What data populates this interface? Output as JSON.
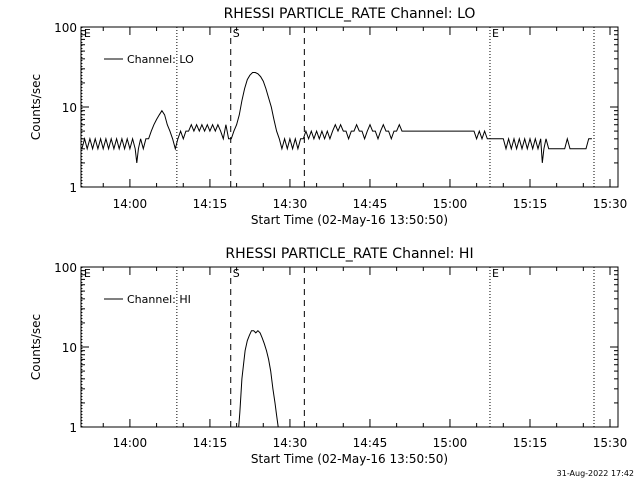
{
  "footer_timestamp": "31-Aug-2022 17:42",
  "chart_data": [
    {
      "type": "line",
      "title": "RHESSI PARTICLE_RATE Channel: LO",
      "xlabel": "Start Time (02-May-16 13:50:50)",
      "ylabel": "Counts/sec",
      "x_tick_labels": [
        "14:00",
        "14:15",
        "14:30",
        "14:45",
        "15:00",
        "15:15",
        "15:30"
      ],
      "x_tick_minutes": [
        600,
        615,
        630,
        645,
        660,
        675,
        690
      ],
      "xlim_minutes": [
        590.83,
        691.5
      ],
      "y_scale": "log",
      "ylim": [
        1,
        100
      ],
      "y_tick_labels": [
        "1",
        "10",
        "100"
      ],
      "y_tick_values": [
        1,
        10,
        100
      ],
      "legend": {
        "position": "top-left",
        "label": "Channel: LO"
      },
      "markers": [
        {
          "label": "E",
          "minute": 591.0,
          "style": "dotted"
        },
        {
          "label": "",
          "minute": 608.8,
          "style": "dotted"
        },
        {
          "label": "S",
          "minute": 618.9,
          "style": "dashed"
        },
        {
          "label": "",
          "minute": 632.7,
          "style": "dashed"
        },
        {
          "label": "E",
          "minute": 667.5,
          "style": "dotted"
        },
        {
          "label": "",
          "minute": 687.0,
          "style": "dotted"
        }
      ],
      "series": [
        {
          "name": "Channel: LO",
          "points": [
            [
              591.0,
              3
            ],
            [
              591.5,
              4
            ],
            [
              592.0,
              3
            ],
            [
              592.5,
              4
            ],
            [
              593.0,
              3
            ],
            [
              593.5,
              4
            ],
            [
              594.0,
              3
            ],
            [
              594.5,
              4
            ],
            [
              595.0,
              3
            ],
            [
              595.5,
              4
            ],
            [
              596.0,
              3
            ],
            [
              596.5,
              4
            ],
            [
              597.0,
              3
            ],
            [
              597.5,
              4
            ],
            [
              598.0,
              3
            ],
            [
              598.5,
              4
            ],
            [
              599.0,
              3
            ],
            [
              599.5,
              4
            ],
            [
              600.0,
              3
            ],
            [
              600.5,
              4
            ],
            [
              601.0,
              3
            ],
            [
              601.3,
              2
            ],
            [
              601.6,
              3
            ],
            [
              602.0,
              4
            ],
            [
              602.5,
              3
            ],
            [
              603.0,
              4
            ],
            [
              603.5,
              4
            ],
            [
              604.0,
              5
            ],
            [
              604.5,
              6
            ],
            [
              605.0,
              7
            ],
            [
              605.5,
              8
            ],
            [
              606.0,
              9
            ],
            [
              606.5,
              8
            ],
            [
              607.0,
              6
            ],
            [
              607.5,
              5
            ],
            [
              608.0,
              4
            ],
            [
              608.5,
              3
            ],
            [
              609.0,
              4
            ],
            [
              609.5,
              5
            ],
            [
              610.0,
              4
            ],
            [
              610.5,
              5
            ],
            [
              611.0,
              5
            ],
            [
              611.5,
              6
            ],
            [
              612.0,
              5
            ],
            [
              612.5,
              6
            ],
            [
              613.0,
              5
            ],
            [
              613.5,
              6
            ],
            [
              614.0,
              5
            ],
            [
              614.5,
              6
            ],
            [
              615.0,
              5
            ],
            [
              615.5,
              6
            ],
            [
              616.0,
              5
            ],
            [
              616.5,
              6
            ],
            [
              617.0,
              5
            ],
            [
              617.5,
              4
            ],
            [
              618.0,
              6
            ],
            [
              618.5,
              4
            ],
            [
              619.0,
              4
            ],
            [
              619.5,
              5
            ],
            [
              620.0,
              6
            ],
            [
              620.5,
              8
            ],
            [
              621.0,
              12
            ],
            [
              621.5,
              17
            ],
            [
              622.0,
              22
            ],
            [
              622.5,
              25
            ],
            [
              623.0,
              27
            ],
            [
              623.5,
              27
            ],
            [
              624.0,
              26
            ],
            [
              624.5,
              24
            ],
            [
              625.0,
              21
            ],
            [
              625.5,
              17
            ],
            [
              626.0,
              13
            ],
            [
              626.5,
              10
            ],
            [
              627.0,
              7
            ],
            [
              627.5,
              5
            ],
            [
              628.0,
              4
            ],
            [
              628.5,
              3
            ],
            [
              629.0,
              4
            ],
            [
              629.5,
              3
            ],
            [
              630.0,
              4
            ],
            [
              630.5,
              3
            ],
            [
              631.0,
              4
            ],
            [
              631.5,
              3
            ],
            [
              632.0,
              4
            ],
            [
              632.5,
              4
            ],
            [
              633.0,
              5
            ],
            [
              633.5,
              4
            ],
            [
              634.0,
              5
            ],
            [
              634.5,
              4
            ],
            [
              635.0,
              5
            ],
            [
              635.5,
              4
            ],
            [
              636.0,
              5
            ],
            [
              636.5,
              4
            ],
            [
              637.0,
              5
            ],
            [
              637.5,
              4
            ],
            [
              638.0,
              5
            ],
            [
              638.5,
              6
            ],
            [
              639.0,
              5
            ],
            [
              639.5,
              6
            ],
            [
              640.0,
              5
            ],
            [
              640.5,
              5
            ],
            [
              641.0,
              4
            ],
            [
              641.5,
              5
            ],
            [
              642.0,
              5
            ],
            [
              642.5,
              6
            ],
            [
              643.0,
              5
            ],
            [
              643.5,
              5
            ],
            [
              644.0,
              4
            ],
            [
              644.5,
              5
            ],
            [
              645.0,
              6
            ],
            [
              645.5,
              5
            ],
            [
              646.0,
              5
            ],
            [
              646.5,
              4
            ],
            [
              647.0,
              5
            ],
            [
              647.5,
              6
            ],
            [
              648.0,
              5
            ],
            [
              648.5,
              5
            ],
            [
              649.0,
              4
            ],
            [
              649.5,
              5
            ],
            [
              650.0,
              5
            ],
            [
              650.5,
              6
            ],
            [
              651.0,
              5
            ],
            [
              651.5,
              5
            ],
            [
              652.0,
              5
            ],
            [
              652.5,
              5
            ],
            [
              653.0,
              5
            ],
            [
              653.5,
              5
            ],
            [
              654.0,
              5
            ],
            [
              654.5,
              5
            ],
            [
              655.0,
              5
            ],
            [
              655.5,
              5
            ],
            [
              656.0,
              5
            ],
            [
              656.5,
              5
            ],
            [
              657.0,
              5
            ],
            [
              657.5,
              5
            ],
            [
              658.0,
              5
            ],
            [
              658.5,
              5
            ],
            [
              659.0,
              5
            ],
            [
              659.5,
              5
            ],
            [
              660.0,
              5
            ],
            [
              660.5,
              5
            ],
            [
              661.0,
              5
            ],
            [
              661.5,
              5
            ],
            [
              662.0,
              5
            ],
            [
              662.5,
              5
            ],
            [
              663.0,
              5
            ],
            [
              663.5,
              5
            ],
            [
              664.0,
              5
            ],
            [
              664.5,
              5
            ],
            [
              665.0,
              4
            ],
            [
              665.5,
              5
            ],
            [
              666.0,
              4
            ],
            [
              666.5,
              5
            ],
            [
              667.0,
              4
            ],
            [
              667.5,
              4
            ],
            [
              668.0,
              4
            ],
            [
              668.5,
              4
            ],
            [
              669.0,
              4
            ],
            [
              669.5,
              4
            ],
            [
              670.0,
              4
            ],
            [
              670.5,
              3
            ],
            [
              671.0,
              4
            ],
            [
              671.5,
              3
            ],
            [
              672.0,
              4
            ],
            [
              672.5,
              3
            ],
            [
              673.0,
              4
            ],
            [
              673.5,
              3
            ],
            [
              674.0,
              4
            ],
            [
              674.5,
              3
            ],
            [
              675.0,
              4
            ],
            [
              675.5,
              3
            ],
            [
              676.0,
              4
            ],
            [
              676.5,
              3
            ],
            [
              677.0,
              4
            ],
            [
              677.3,
              2
            ],
            [
              677.6,
              3
            ],
            [
              678.0,
              4
            ],
            [
              678.5,
              3
            ],
            [
              679.0,
              3
            ],
            [
              679.5,
              3
            ],
            [
              680.0,
              3
            ],
            [
              680.5,
              3
            ],
            [
              681.0,
              3
            ],
            [
              681.5,
              3
            ],
            [
              682.0,
              4
            ],
            [
              682.5,
              3
            ],
            [
              683.0,
              3
            ],
            [
              683.5,
              3
            ],
            [
              684.0,
              3
            ],
            [
              684.5,
              3
            ],
            [
              685.0,
              3
            ],
            [
              685.5,
              3
            ],
            [
              686.0,
              4
            ],
            [
              686.6,
              4
            ]
          ]
        }
      ]
    },
    {
      "type": "line",
      "title": "RHESSI PARTICLE_RATE Channel: HI",
      "xlabel": "Start Time (02-May-16 13:50:50)",
      "ylabel": "Counts/sec",
      "x_tick_labels": [
        "14:00",
        "14:15",
        "14:30",
        "14:45",
        "15:00",
        "15:15",
        "15:30"
      ],
      "x_tick_minutes": [
        600,
        615,
        630,
        645,
        660,
        675,
        690
      ],
      "xlim_minutes": [
        590.83,
        691.5
      ],
      "y_scale": "log",
      "ylim": [
        1,
        100
      ],
      "y_tick_labels": [
        "1",
        "10",
        "100"
      ],
      "y_tick_values": [
        1,
        10,
        100
      ],
      "legend": {
        "position": "top-left",
        "label": "Channel: HI"
      },
      "markers": [
        {
          "label": "E",
          "minute": 591.0,
          "style": "dotted"
        },
        {
          "label": "",
          "minute": 608.8,
          "style": "dotted"
        },
        {
          "label": "S",
          "minute": 618.9,
          "style": "dashed"
        },
        {
          "label": "",
          "minute": 632.7,
          "style": "dashed"
        },
        {
          "label": "E",
          "minute": 667.5,
          "style": "dotted"
        },
        {
          "label": "",
          "minute": 687.0,
          "style": "dotted"
        }
      ],
      "series": [
        {
          "name": "Channel: HI",
          "points": [
            [
              620.4,
              1
            ],
            [
              620.6,
              1.5
            ],
            [
              620.8,
              2.5
            ],
            [
              621.0,
              4
            ],
            [
              621.3,
              6
            ],
            [
              621.6,
              9
            ],
            [
              622.0,
              12
            ],
            [
              622.4,
              14
            ],
            [
              622.8,
              16
            ],
            [
              623.2,
              16
            ],
            [
              623.6,
              15
            ],
            [
              624.0,
              16
            ],
            [
              624.4,
              15
            ],
            [
              624.8,
              13
            ],
            [
              625.2,
              11
            ],
            [
              625.6,
              9
            ],
            [
              626.0,
              7
            ],
            [
              626.4,
              5
            ],
            [
              626.8,
              3
            ],
            [
              627.2,
              2
            ],
            [
              627.5,
              1.4
            ],
            [
              627.8,
              1
            ]
          ]
        }
      ]
    }
  ]
}
